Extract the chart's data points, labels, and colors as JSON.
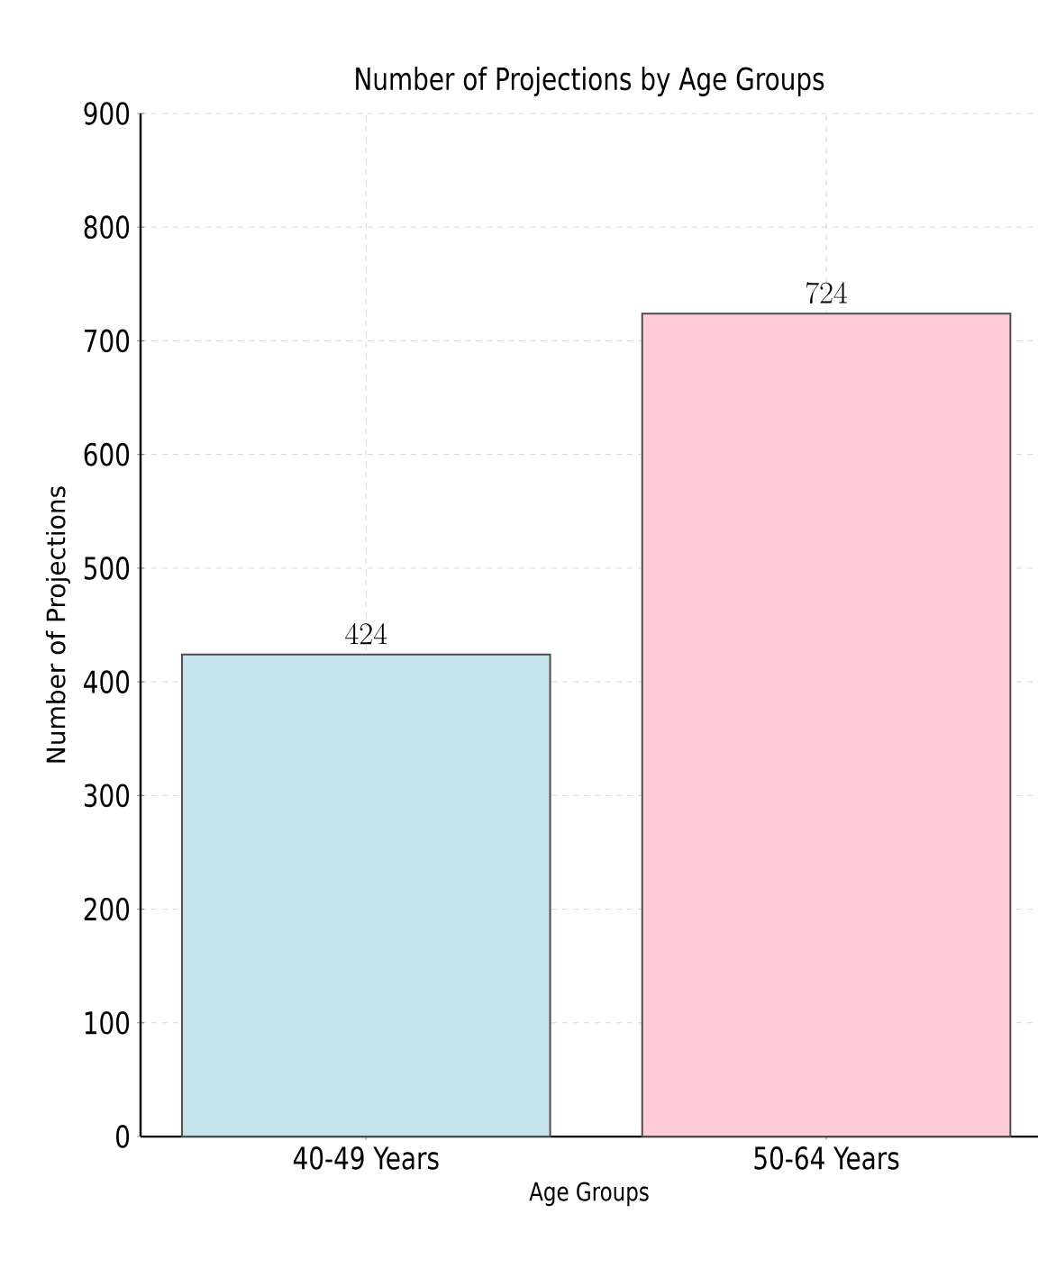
{
  "chart_data": {
    "type": "bar",
    "title": "Number of Projections by Age Groups",
    "xlabel": "Age Groups",
    "ylabel": "Number of Projections",
    "categories": [
      "40-49 Years",
      "50-64 Years"
    ],
    "values": [
      424,
      724
    ],
    "colors": [
      "#c6e3eb",
      "#fecdd6"
    ],
    "ylim": [
      0,
      900
    ],
    "yticks": [
      0,
      100,
      200,
      300,
      400,
      500,
      600,
      700,
      800,
      900
    ],
    "grid": true,
    "data_labels": true
  }
}
